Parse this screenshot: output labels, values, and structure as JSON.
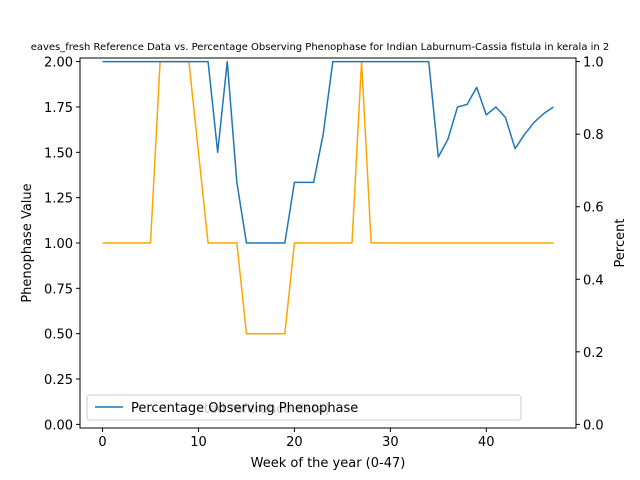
{
  "chart_data": {
    "type": "line",
    "title": "eaves_fresh Reference Data vs. Percentage Observing Phenophase for Indian Laburnum-Cassia fistula in kerala in 2",
    "xlabel": "Week of the year (0-47)",
    "ylabel_left": "Phenophase Value",
    "ylabel_right": "Percent",
    "xlim": [
      -2.35,
      49.35
    ],
    "ylim_left": [
      -0.02,
      2.02
    ],
    "ylim_right": [
      -0.01,
      1.01
    ],
    "x_ticks": [
      0,
      10,
      20,
      30,
      40
    ],
    "y_ticks_left": [
      "0.00",
      "0.25",
      "0.50",
      "0.75",
      "1.00",
      "1.25",
      "1.50",
      "1.75",
      "2.00"
    ],
    "y_ticks_right": [
      "0.0",
      "0.2",
      "0.4",
      "0.6",
      "0.8",
      "1.0"
    ],
    "grid": false,
    "legend_position": "lower-left",
    "series": [
      {
        "name": "",
        "axis": "left",
        "color": "#ffa500",
        "x": [
          0,
          1,
          2,
          3,
          4,
          5,
          6,
          7,
          8,
          9,
          10,
          11,
          12,
          13,
          14,
          15,
          16,
          17,
          18,
          19,
          20,
          21,
          22,
          23,
          24,
          25,
          26,
          27,
          28,
          29,
          30,
          31,
          32,
          33,
          34,
          35,
          36,
          37,
          38,
          39,
          40,
          41,
          42,
          43,
          44,
          45,
          46,
          47
        ],
        "y": [
          1,
          1,
          1,
          1,
          1,
          1,
          2,
          2,
          2,
          2,
          1.5,
          1,
          1,
          1,
          1,
          0.5,
          0.5,
          0.5,
          0.5,
          0.5,
          1,
          1,
          1,
          1,
          1,
          1,
          1,
          2,
          1,
          1,
          1,
          1,
          1,
          1,
          1,
          1,
          1,
          1,
          1,
          1,
          1,
          1,
          1,
          1,
          1,
          1,
          1,
          1
        ]
      },
      {
        "name": "Percentage Observing Phenophase",
        "axis": "right",
        "color": "#1f77b4",
        "x": [
          0,
          1,
          2,
          3,
          4,
          5,
          6,
          7,
          8,
          9,
          10,
          11,
          12,
          13,
          14,
          15,
          16,
          17,
          18,
          19,
          20,
          21,
          22,
          23,
          24,
          25,
          26,
          27,
          28,
          29,
          30,
          31,
          32,
          33,
          34,
          35,
          36,
          37,
          38,
          39,
          40,
          41,
          42,
          43,
          44,
          45,
          46,
          47
        ],
        "y": [
          1,
          1,
          1,
          1,
          1,
          1,
          1,
          1,
          1,
          1,
          1,
          1,
          0.75,
          1,
          0.667,
          0.5,
          0.5,
          0.5,
          0.5,
          0.5,
          0.667,
          0.667,
          0.667,
          0.8,
          1,
          1,
          1,
          1,
          1,
          1,
          1,
          1,
          1,
          1,
          1,
          0.737,
          0.786,
          0.875,
          0.882,
          0.929,
          0.853,
          0.875,
          0.846,
          0.76,
          0.8,
          0.833,
          0.857,
          0.875
        ]
      }
    ],
    "legend": {
      "entries": [
        "Percentage Observing Phenophase"
      ],
      "overlapping_text": "ted reference data)"
    }
  }
}
